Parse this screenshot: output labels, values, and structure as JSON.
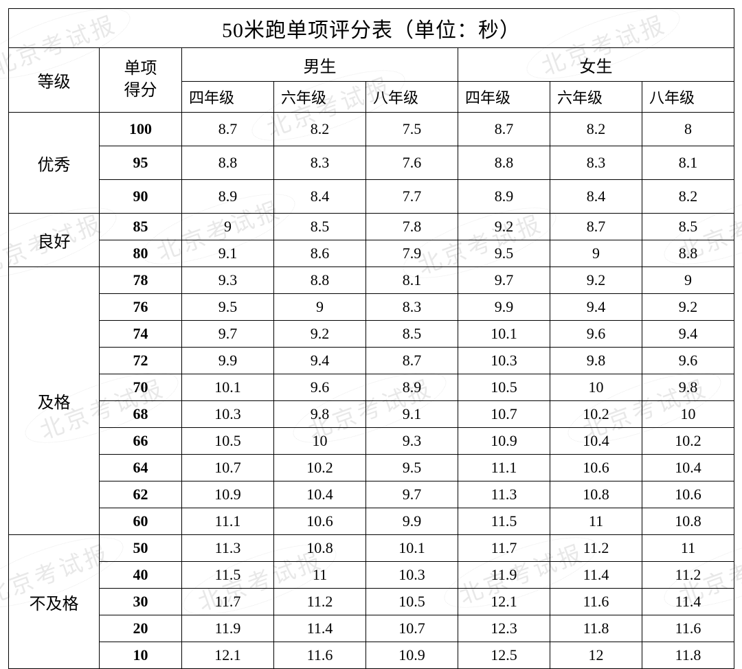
{
  "title": "50米跑单项评分表（单位：秒）",
  "header": {
    "level": "等级",
    "score": "单项\n得分",
    "male": "男生",
    "female": "女生",
    "grades": [
      "四年级",
      "六年级",
      "八年级"
    ]
  },
  "watermark": {
    "text": "北京考试报",
    "color": "rgba(0,0,0,0.09)"
  },
  "table": {
    "type": "table",
    "border_color": "#000000",
    "background_color": "#ffffff",
    "title_fontsize": 30,
    "header_fontsize": 24,
    "score_fontsize": 22,
    "value_fontsize": 22,
    "font_family": "SimSun"
  },
  "levels": [
    {
      "name": "优秀",
      "tall": true,
      "rows": [
        {
          "score": "100",
          "m": [
            "8.7",
            "8.2",
            "7.5"
          ],
          "f": [
            "8.7",
            "8.2",
            "8"
          ]
        },
        {
          "score": "95",
          "m": [
            "8.8",
            "8.3",
            "7.6"
          ],
          "f": [
            "8.8",
            "8.3",
            "8.1"
          ]
        },
        {
          "score": "90",
          "m": [
            "8.9",
            "8.4",
            "7.7"
          ],
          "f": [
            "8.9",
            "8.4",
            "8.2"
          ]
        }
      ]
    },
    {
      "name": "良好",
      "rows": [
        {
          "score": "85",
          "m": [
            "9",
            "8.5",
            "7.8"
          ],
          "f": [
            "9.2",
            "8.7",
            "8.5"
          ]
        },
        {
          "score": "80",
          "m": [
            "9.1",
            "8.6",
            "7.9"
          ],
          "f": [
            "9.5",
            "9",
            "8.8"
          ]
        }
      ]
    },
    {
      "name": "及格",
      "rows": [
        {
          "score": "78",
          "m": [
            "9.3",
            "8.8",
            "8.1"
          ],
          "f": [
            "9.7",
            "9.2",
            "9"
          ]
        },
        {
          "score": "76",
          "m": [
            "9.5",
            "9",
            "8.3"
          ],
          "f": [
            "9.9",
            "9.4",
            "9.2"
          ]
        },
        {
          "score": "74",
          "m": [
            "9.7",
            "9.2",
            "8.5"
          ],
          "f": [
            "10.1",
            "9.6",
            "9.4"
          ]
        },
        {
          "score": "72",
          "m": [
            "9.9",
            "9.4",
            "8.7"
          ],
          "f": [
            "10.3",
            "9.8",
            "9.6"
          ]
        },
        {
          "score": "70",
          "m": [
            "10.1",
            "9.6",
            "8.9"
          ],
          "f": [
            "10.5",
            "10",
            "9.8"
          ]
        },
        {
          "score": "68",
          "m": [
            "10.3",
            "9.8",
            "9.1"
          ],
          "f": [
            "10.7",
            "10.2",
            "10"
          ]
        },
        {
          "score": "66",
          "m": [
            "10.5",
            "10",
            "9.3"
          ],
          "f": [
            "10.9",
            "10.4",
            "10.2"
          ]
        },
        {
          "score": "64",
          "m": [
            "10.7",
            "10.2",
            "9.5"
          ],
          "f": [
            "11.1",
            "10.6",
            "10.4"
          ]
        },
        {
          "score": "62",
          "m": [
            "10.9",
            "10.4",
            "9.7"
          ],
          "f": [
            "11.3",
            "10.8",
            "10.6"
          ]
        },
        {
          "score": "60",
          "m": [
            "11.1",
            "10.6",
            "9.9"
          ],
          "f": [
            "11.5",
            "11",
            "10.8"
          ]
        }
      ]
    },
    {
      "name": "不及格",
      "rows": [
        {
          "score": "50",
          "m": [
            "11.3",
            "10.8",
            "10.1"
          ],
          "f": [
            "11.7",
            "11.2",
            "11"
          ]
        },
        {
          "score": "40",
          "m": [
            "11.5",
            "11",
            "10.3"
          ],
          "f": [
            "11.9",
            "11.4",
            "11.2"
          ]
        },
        {
          "score": "30",
          "m": [
            "11.7",
            "11.2",
            "10.5"
          ],
          "f": [
            "12.1",
            "11.6",
            "11.4"
          ]
        },
        {
          "score": "20",
          "m": [
            "11.9",
            "11.4",
            "10.7"
          ],
          "f": [
            "12.3",
            "11.8",
            "11.6"
          ]
        },
        {
          "score": "10",
          "m": [
            "12.1",
            "11.6",
            "10.9"
          ],
          "f": [
            "12.5",
            "12",
            "11.8"
          ]
        }
      ]
    }
  ]
}
